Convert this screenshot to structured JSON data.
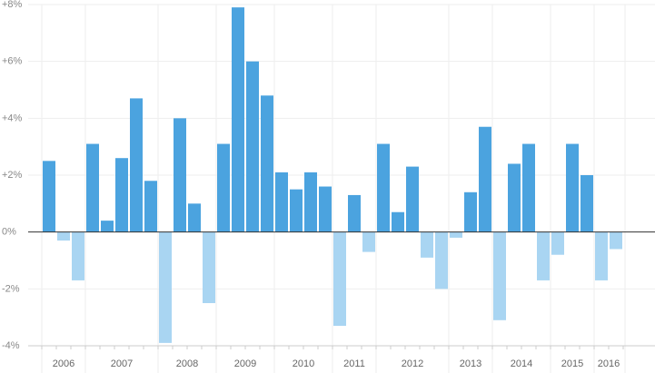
{
  "chart_data": {
    "type": "bar",
    "title": "",
    "xlabel": "",
    "ylabel": "",
    "ylim": [
      -4,
      8
    ],
    "y_ticks": [
      -4,
      -2,
      0,
      2,
      4,
      6,
      8
    ],
    "y_tick_labels": [
      "-4%",
      "-2%",
      "0%",
      "+2%",
      "+4%",
      "+6%",
      "+8%"
    ],
    "grid": true,
    "legend": "none",
    "colors": {
      "positive": "#4ba3df",
      "negative": "#a9d5f2",
      "grid": "#eeeeee",
      "zero_line": "#333333"
    },
    "years": [
      {
        "label": "2006",
        "values": [
          2.5,
          -0.3,
          -1.7
        ]
      },
      {
        "label": "2007",
        "values": [
          3.1,
          0.4,
          2.6,
          4.7,
          1.8
        ]
      },
      {
        "label": "2008",
        "values": [
          -3.9,
          4.0,
          1.0,
          -2.5
        ]
      },
      {
        "label": "2009",
        "values": [
          3.1,
          7.9,
          6.0,
          4.8
        ]
      },
      {
        "label": "2010",
        "values": [
          2.1,
          1.5,
          2.1,
          1.6
        ]
      },
      {
        "label": "2011",
        "values": [
          -3.3,
          1.3,
          -0.7
        ]
      },
      {
        "label": "2012",
        "values": [
          3.1,
          0.7,
          2.3,
          -0.9,
          -2.0
        ]
      },
      {
        "label": "2013",
        "values": [
          -0.2,
          1.4,
          3.7
        ]
      },
      {
        "label": "2014",
        "values": [
          -3.1,
          2.4,
          3.1,
          -1.7
        ]
      },
      {
        "label": "2015",
        "values": [
          -0.8,
          3.1,
          2.0
        ]
      },
      {
        "label": "2016",
        "values": [
          -1.7,
          -0.6
        ]
      }
    ]
  }
}
